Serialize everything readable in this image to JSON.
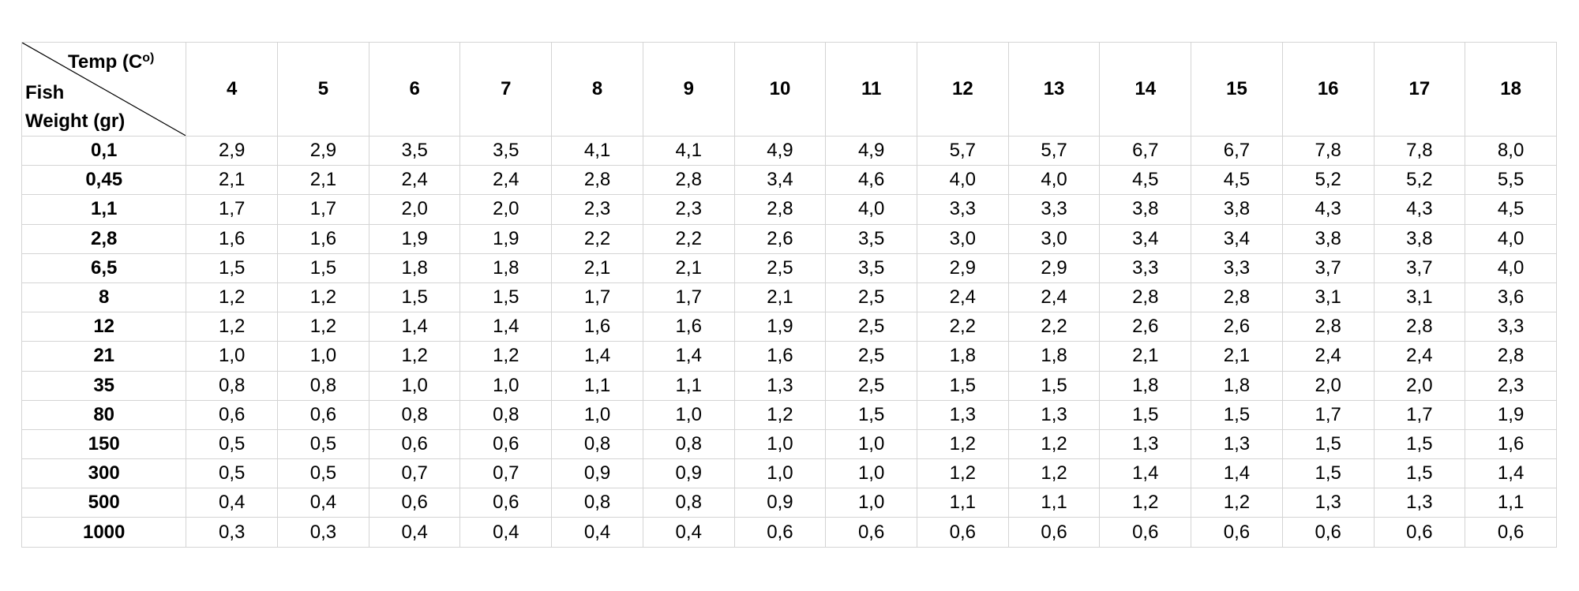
{
  "table": {
    "corner": {
      "temp_label": "Temp (C",
      "temp_sup": "o)",
      "fish_label": "Fish",
      "weight_label": "Weight (gr)"
    },
    "temps": [
      "4",
      "5",
      "6",
      "7",
      "8",
      "9",
      "10",
      "11",
      "12",
      "13",
      "14",
      "15",
      "16",
      "17",
      "18"
    ],
    "rows": [
      {
        "weight": "0,1",
        "values": [
          "2,9",
          "2,9",
          "3,5",
          "3,5",
          "4,1",
          "4,1",
          "4,9",
          "4,9",
          "5,7",
          "5,7",
          "6,7",
          "6,7",
          "7,8",
          "7,8",
          "8,0"
        ]
      },
      {
        "weight": "0,45",
        "values": [
          "2,1",
          "2,1",
          "2,4",
          "2,4",
          "2,8",
          "2,8",
          "3,4",
          "4,6",
          "4,0",
          "4,0",
          "4,5",
          "4,5",
          "5,2",
          "5,2",
          "5,5"
        ]
      },
      {
        "weight": "1,1",
        "values": [
          "1,7",
          "1,7",
          "2,0",
          "2,0",
          "2,3",
          "2,3",
          "2,8",
          "4,0",
          "3,3",
          "3,3",
          "3,8",
          "3,8",
          "4,3",
          "4,3",
          "4,5"
        ]
      },
      {
        "weight": "2,8",
        "values": [
          "1,6",
          "1,6",
          "1,9",
          "1,9",
          "2,2",
          "2,2",
          "2,6",
          "3,5",
          "3,0",
          "3,0",
          "3,4",
          "3,4",
          "3,8",
          "3,8",
          "4,0"
        ]
      },
      {
        "weight": "6,5",
        "values": [
          "1,5",
          "1,5",
          "1,8",
          "1,8",
          "2,1",
          "2,1",
          "2,5",
          "3,5",
          "2,9",
          "2,9",
          "3,3",
          "3,3",
          "3,7",
          "3,7",
          "4,0"
        ]
      },
      {
        "weight": "8",
        "values": [
          "1,2",
          "1,2",
          "1,5",
          "1,5",
          "1,7",
          "1,7",
          "2,1",
          "2,5",
          "2,4",
          "2,4",
          "2,8",
          "2,8",
          "3,1",
          "3,1",
          "3,6"
        ]
      },
      {
        "weight": "12",
        "values": [
          "1,2",
          "1,2",
          "1,4",
          "1,4",
          "1,6",
          "1,6",
          "1,9",
          "2,5",
          "2,2",
          "2,2",
          "2,6",
          "2,6",
          "2,8",
          "2,8",
          "3,3"
        ]
      },
      {
        "weight": "21",
        "values": [
          "1,0",
          "1,0",
          "1,2",
          "1,2",
          "1,4",
          "1,4",
          "1,6",
          "2,5",
          "1,8",
          "1,8",
          "2,1",
          "2,1",
          "2,4",
          "2,4",
          "2,8"
        ]
      },
      {
        "weight": "35",
        "values": [
          "0,8",
          "0,8",
          "1,0",
          "1,0",
          "1,1",
          "1,1",
          "1,3",
          "2,5",
          "1,5",
          "1,5",
          "1,8",
          "1,8",
          "2,0",
          "2,0",
          "2,3"
        ]
      },
      {
        "weight": "80",
        "values": [
          "0,6",
          "0,6",
          "0,8",
          "0,8",
          "1,0",
          "1,0",
          "1,2",
          "1,5",
          "1,3",
          "1,3",
          "1,5",
          "1,5",
          "1,7",
          "1,7",
          "1,9"
        ]
      },
      {
        "weight": "150",
        "values": [
          "0,5",
          "0,5",
          "0,6",
          "0,6",
          "0,8",
          "0,8",
          "1,0",
          "1,0",
          "1,2",
          "1,2",
          "1,3",
          "1,3",
          "1,5",
          "1,5",
          "1,6"
        ]
      },
      {
        "weight": "300",
        "values": [
          "0,5",
          "0,5",
          "0,7",
          "0,7",
          "0,9",
          "0,9",
          "1,0",
          "1,0",
          "1,2",
          "1,2",
          "1,4",
          "1,4",
          "1,5",
          "1,5",
          "1,4"
        ]
      },
      {
        "weight": "500",
        "values": [
          "0,4",
          "0,4",
          "0,6",
          "0,6",
          "0,8",
          "0,8",
          "0,9",
          "1,0",
          "1,1",
          "1,1",
          "1,2",
          "1,2",
          "1,3",
          "1,3",
          "1,1"
        ]
      },
      {
        "weight": "1000",
        "values": [
          "0,3",
          "0,3",
          "0,4",
          "0,4",
          "0,4",
          "0,4",
          "0,6",
          "0,6",
          "0,6",
          "0,6",
          "0,6",
          "0,6",
          "0,6",
          "0,6",
          "0,6"
        ]
      }
    ]
  },
  "colors": {
    "grid_line": "#d4d4d4",
    "diagonal_line": "#000000",
    "text": "#000000",
    "background": "#ffffff"
  }
}
